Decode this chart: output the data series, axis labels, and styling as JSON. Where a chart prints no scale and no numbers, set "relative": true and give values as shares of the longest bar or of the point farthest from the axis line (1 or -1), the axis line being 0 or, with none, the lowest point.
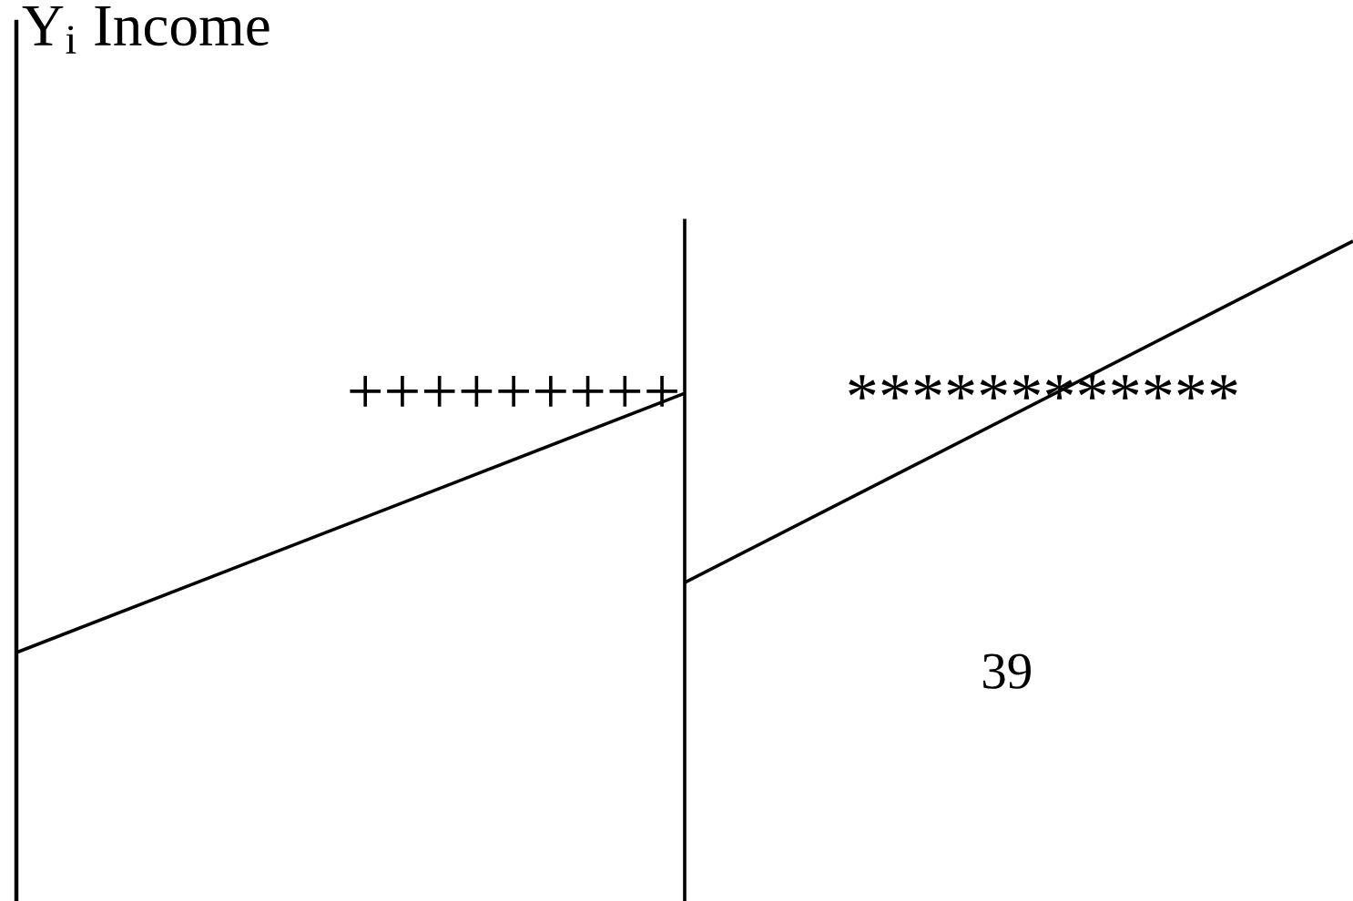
{
  "chart_data": {
    "type": "line",
    "ylabel": "Y$_{i}$ Income",
    "relative": true,
    "categories": [
      null,
      null,
      null
    ],
    "series": [
      {
        "color": "#000000",
        "values": [
          0,
          0.63,
          null
        ]
      },
      {
        "color": "#000000",
        "values": [
          null,
          0.17,
          1
        ]
      }
    ],
    "annotations": [
      "+++++++++",
      "************",
      "39"
    ]
  }
}
